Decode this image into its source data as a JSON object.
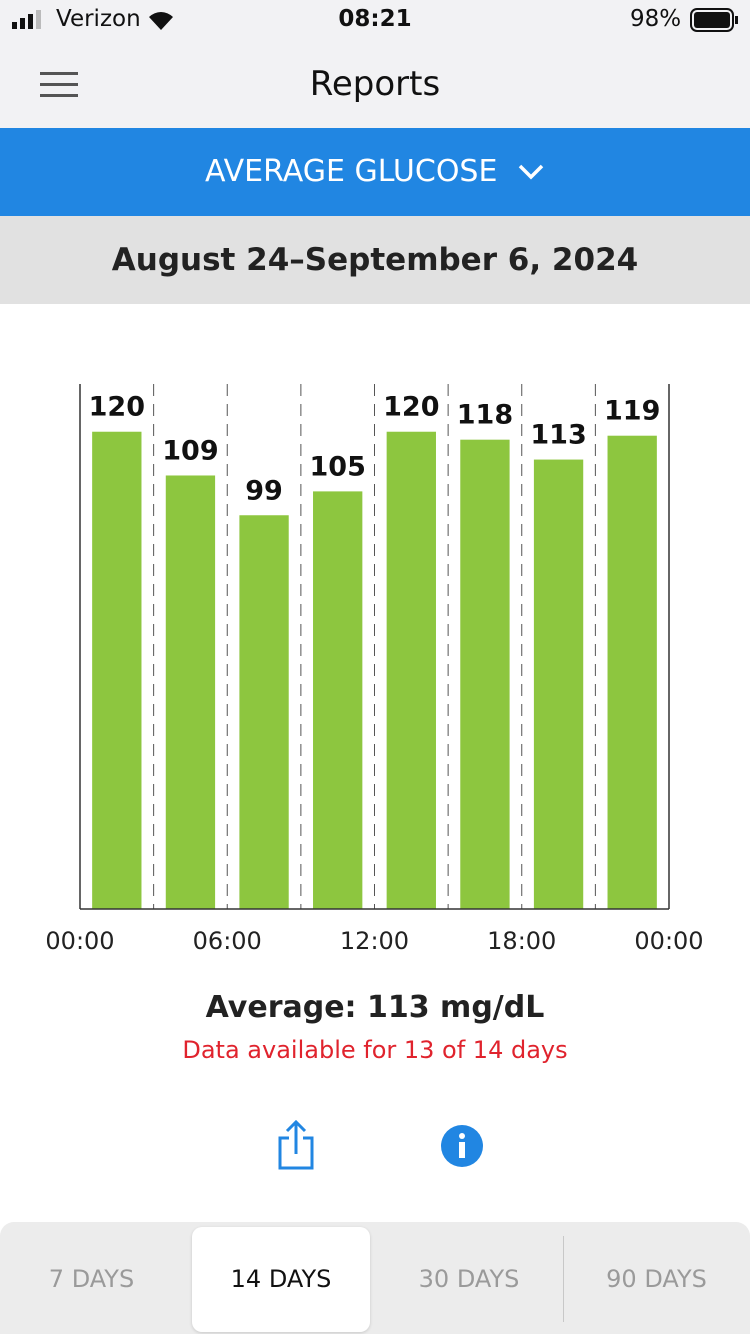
{
  "status_bar": {
    "carrier": "Verizon",
    "time": "08:21",
    "battery": "98%"
  },
  "header": {
    "title": "Reports"
  },
  "report_selector": "AVERAGE GLUCOSE",
  "date_range": "August 24–September 6, 2024",
  "chart_data": {
    "type": "bar",
    "categories": [
      null,
      null,
      null,
      null,
      null,
      null,
      null,
      null
    ],
    "values": [
      120,
      109,
      99,
      105,
      120,
      118,
      113,
      119
    ],
    "color": "#8dc63f",
    "ylim": [
      0,
      132
    ],
    "xtick_labels": [
      "00:00",
      "06:00",
      "12:00",
      "18:00",
      "00:00"
    ]
  },
  "summary": "Average: 113 mg/dL",
  "note": "Data available for 13 of 14 days",
  "tabs": {
    "items": [
      "7 DAYS",
      "14 DAYS",
      "30 DAYS",
      "90 DAYS"
    ],
    "selected": 1
  }
}
